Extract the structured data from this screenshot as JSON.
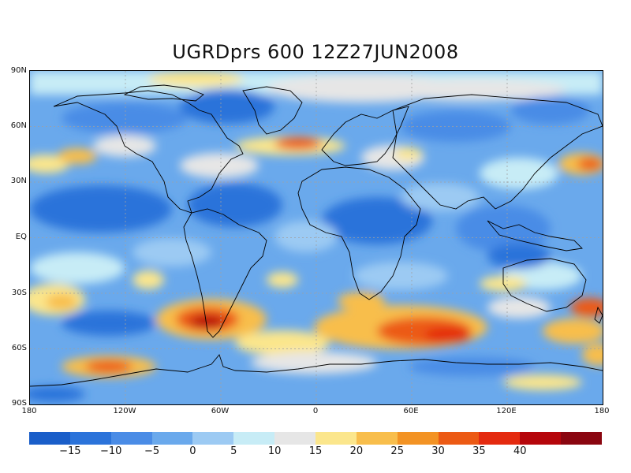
{
  "title": "UGRDprs 600 12Z27JUN2008",
  "lat_labels": [
    "90N",
    "60N",
    "30N",
    "EQ",
    "30S",
    "60S",
    "90S"
  ],
  "lon_labels": [
    "180",
    "120W",
    "60W",
    "0",
    "60E",
    "120E",
    "180"
  ],
  "colorbar": {
    "colors": [
      "#1a5ec9",
      "#2b73da",
      "#4a8ce6",
      "#6aa9ec",
      "#9ccaf3",
      "#c7ecf6",
      "#e6e6e6",
      "#fbe68c",
      "#f8be4c",
      "#f39324",
      "#ec5a14",
      "#e42a0f",
      "#b5060b",
      "#8a0610"
    ],
    "ticks": [
      "−15",
      "−10",
      "−5",
      "0",
      "5",
      "10",
      "15",
      "20",
      "25",
      "30",
      "35",
      "40"
    ]
  }
}
